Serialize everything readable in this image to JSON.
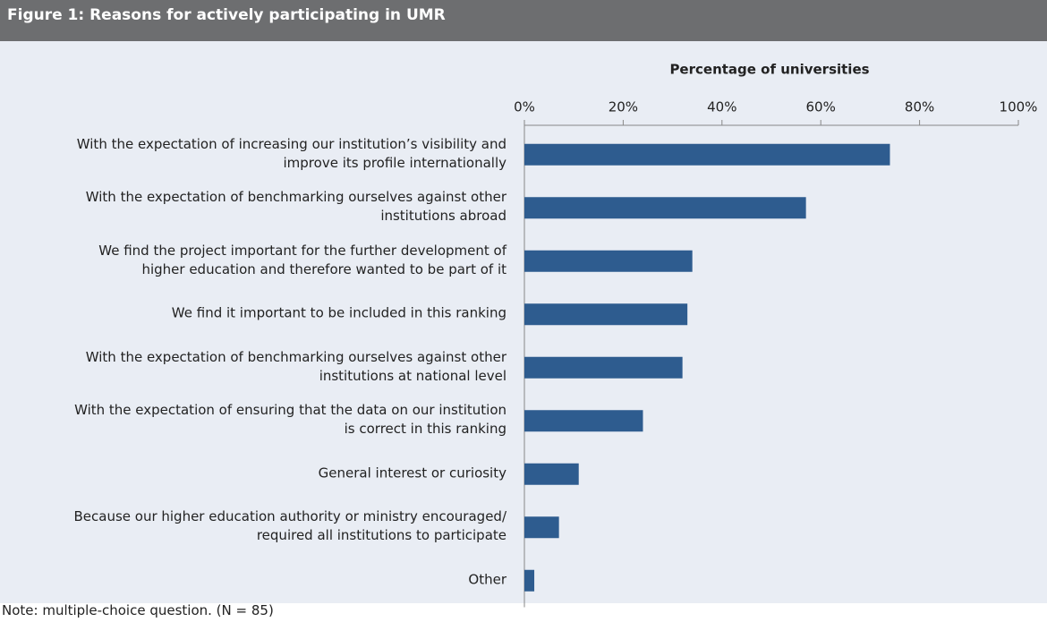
{
  "chart_data": {
    "type": "bar",
    "orientation": "horizontal",
    "title": "Figure 1: Reasons for actively participating in UMR",
    "x_label": "Percentage of universities",
    "note": "Note: multiple-choice question. (N = 85)",
    "categories": [
      "With the expectation of increasing our institution’s visibility and\nimprove its profile internationally",
      "With the expectation of benchmarking ourselves against other\ninstitutions abroad",
      "We find the project important for the further development of\nhigher education and therefore wanted to be part of it",
      "We find it important to be included in this ranking",
      "With the expectation of benchmarking ourselves against other\ninstitutions at national level",
      "With the expectation of ensuring that the data on our institution\nis correct in this ranking",
      "General interest or curiosity",
      "Because our higher education authority or ministry encouraged/\nrequired all institutions to participate",
      "Other"
    ],
    "values": [
      74,
      57,
      34,
      33,
      32,
      24,
      11,
      7,
      2
    ],
    "color": "#2e5c8f",
    "xlim": [
      0,
      100
    ],
    "xticks": [
      {
        "value": 0,
        "label": "0%"
      },
      {
        "value": 20,
        "label": "20%"
      },
      {
        "value": 40,
        "label": "40%"
      },
      {
        "value": 60,
        "label": "60%"
      },
      {
        "value": 80,
        "label": "80%"
      },
      {
        "value": 100,
        "label": "100%"
      }
    ]
  }
}
